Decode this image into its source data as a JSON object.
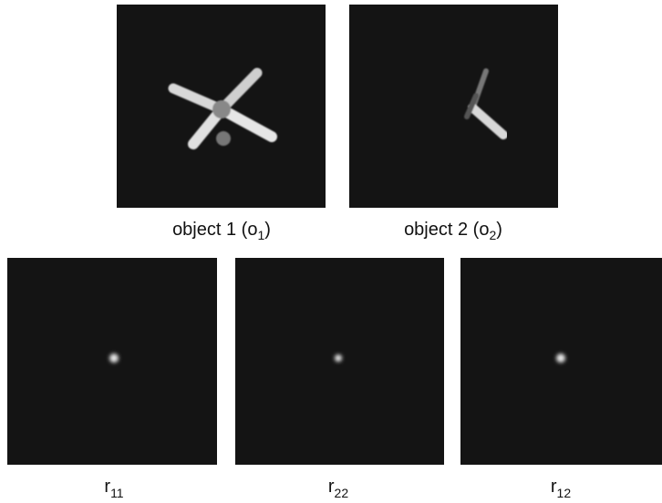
{
  "panels": [
    {
      "text": "object 1 (o",
      "sub": "1",
      "end": ")"
    },
    {
      "text": "object 2 (o",
      "sub": "2",
      "end": ")"
    },
    {
      "text": "r",
      "sub": "11"
    },
    {
      "text": "r",
      "sub": "22"
    },
    {
      "text": "r",
      "sub": "12"
    }
  ]
}
